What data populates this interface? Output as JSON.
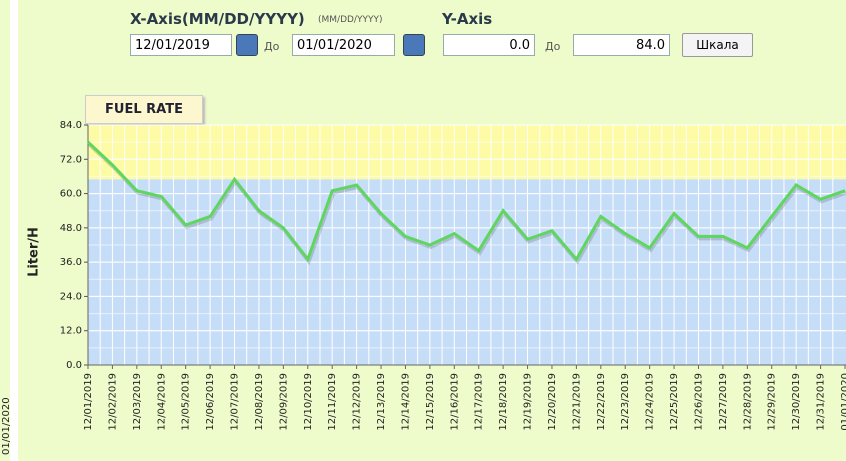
{
  "left_panel": {
    "label": "01/01/2020"
  },
  "header": {
    "x_axis_label": "X-Axis(MM/DD/YYYY)",
    "x_axis_hint": "(MM/DD/YYYY)",
    "y_axis_label": "Y-Axis",
    "date_from": "12/01/2019",
    "to_1": "До",
    "date_to": "01/01/2020",
    "y_from": "0.0",
    "to_2": "До",
    "y_to": "84.0",
    "scale_button": "Шкала"
  },
  "chart_data": {
    "type": "line",
    "title": "FUEL RATE",
    "y_label": "Liter/H",
    "categories": [
      "12/01/2019",
      "12/02/2019",
      "12/03/2019",
      "12/04/2019",
      "12/05/2019",
      "12/06/2019",
      "12/07/2019",
      "12/08/2019",
      "12/09/2019",
      "12/10/2019",
      "12/11/2019",
      "12/12/2019",
      "12/13/2019",
      "12/14/2019",
      "12/15/2019",
      "12/16/2019",
      "12/17/2019",
      "12/18/2019",
      "12/19/2019",
      "12/20/2019",
      "12/21/2019",
      "12/22/2019",
      "12/23/2019",
      "12/24/2019",
      "12/25/2019",
      "12/26/2019",
      "12/27/2019",
      "12/28/2019",
      "12/29/2019",
      "12/30/2019",
      "12/31/2019",
      "01/01/2020"
    ],
    "values": [
      78,
      70,
      61,
      59,
      49,
      52,
      65,
      54,
      48,
      37,
      61,
      63,
      53,
      45,
      42,
      46,
      40,
      54,
      44,
      47,
      37,
      52,
      46,
      41,
      53,
      45,
      45,
      41,
      52,
      63,
      58,
      61
    ],
    "color": "#5fd65f",
    "ylim": [
      0,
      84
    ],
    "yticks": [
      {
        "value": 0,
        "label": "0.0"
      },
      {
        "value": 12,
        "label": "12.0"
      },
      {
        "value": 24,
        "label": "24.0"
      },
      {
        "value": 36,
        "label": "36.0"
      },
      {
        "value": 48,
        "label": "48.0"
      },
      {
        "value": 60,
        "label": "60.0"
      },
      {
        "value": 72,
        "label": "72.0"
      },
      {
        "value": 84,
        "label": "84.0"
      }
    ],
    "bands": [
      {
        "from": 0,
        "to": 65,
        "color": "#c6ddf7"
      },
      {
        "from": 65,
        "to": 84,
        "color": "#fdfba6"
      }
    ],
    "grid": true
  }
}
